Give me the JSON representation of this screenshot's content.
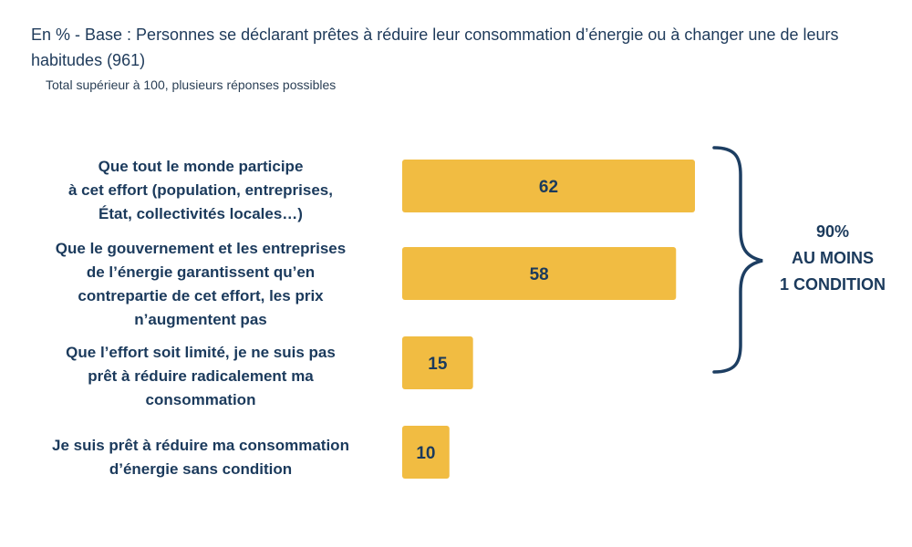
{
  "header": {
    "subtitle": "En % - Base : Personnes se déclarant prêtes à réduire leur consommation d’énergie ou à changer une de leurs habitudes (961)",
    "note": "Total supérieur à 100, plusieurs réponses possibles"
  },
  "summary": {
    "value": "90%",
    "line1": "AU MOINS",
    "line2": "1 CONDITION"
  },
  "colors": {
    "bar": "#f1bc42",
    "text": "#1b3a5c",
    "brace": "#1d3e62"
  },
  "chart_data": {
    "type": "bar",
    "orientation": "horizontal",
    "categories": [
      "Que tout le monde participe à cet effort (population, entreprises, État, collectivités locales…)",
      "Que le gouvernement et les entreprises de l’énergie garantissent qu’en contrepartie de cet effort, les prix n’augmentent pas",
      "Que l’effort soit limité, je ne suis pas prêt à réduire radicalement ma consommation",
      "Je suis prêt à réduire ma consommation d’énergie sans condition"
    ],
    "category_lines": [
      [
        "Que tout le monde participe",
        "à cet effort (population, entreprises,",
        "État, collectivités locales…)"
      ],
      [
        "Que le gouvernement et les entreprises",
        "de l’énergie garantissent qu’en",
        "contrepartie de cet effort, les prix",
        "n’augmentent pas"
      ],
      [
        "Que l’effort soit limité, je ne suis pas",
        "prêt à réduire radicalement ma",
        "consommation"
      ],
      [
        "Je suis prêt à réduire ma consommation",
        "d’énergie sans condition"
      ]
    ],
    "values": [
      62,
      58,
      15,
      10
    ],
    "labels": [
      "62",
      "58",
      "15",
      "10"
    ],
    "xlim": [
      0,
      62
    ],
    "grid": false,
    "legend": "none"
  }
}
